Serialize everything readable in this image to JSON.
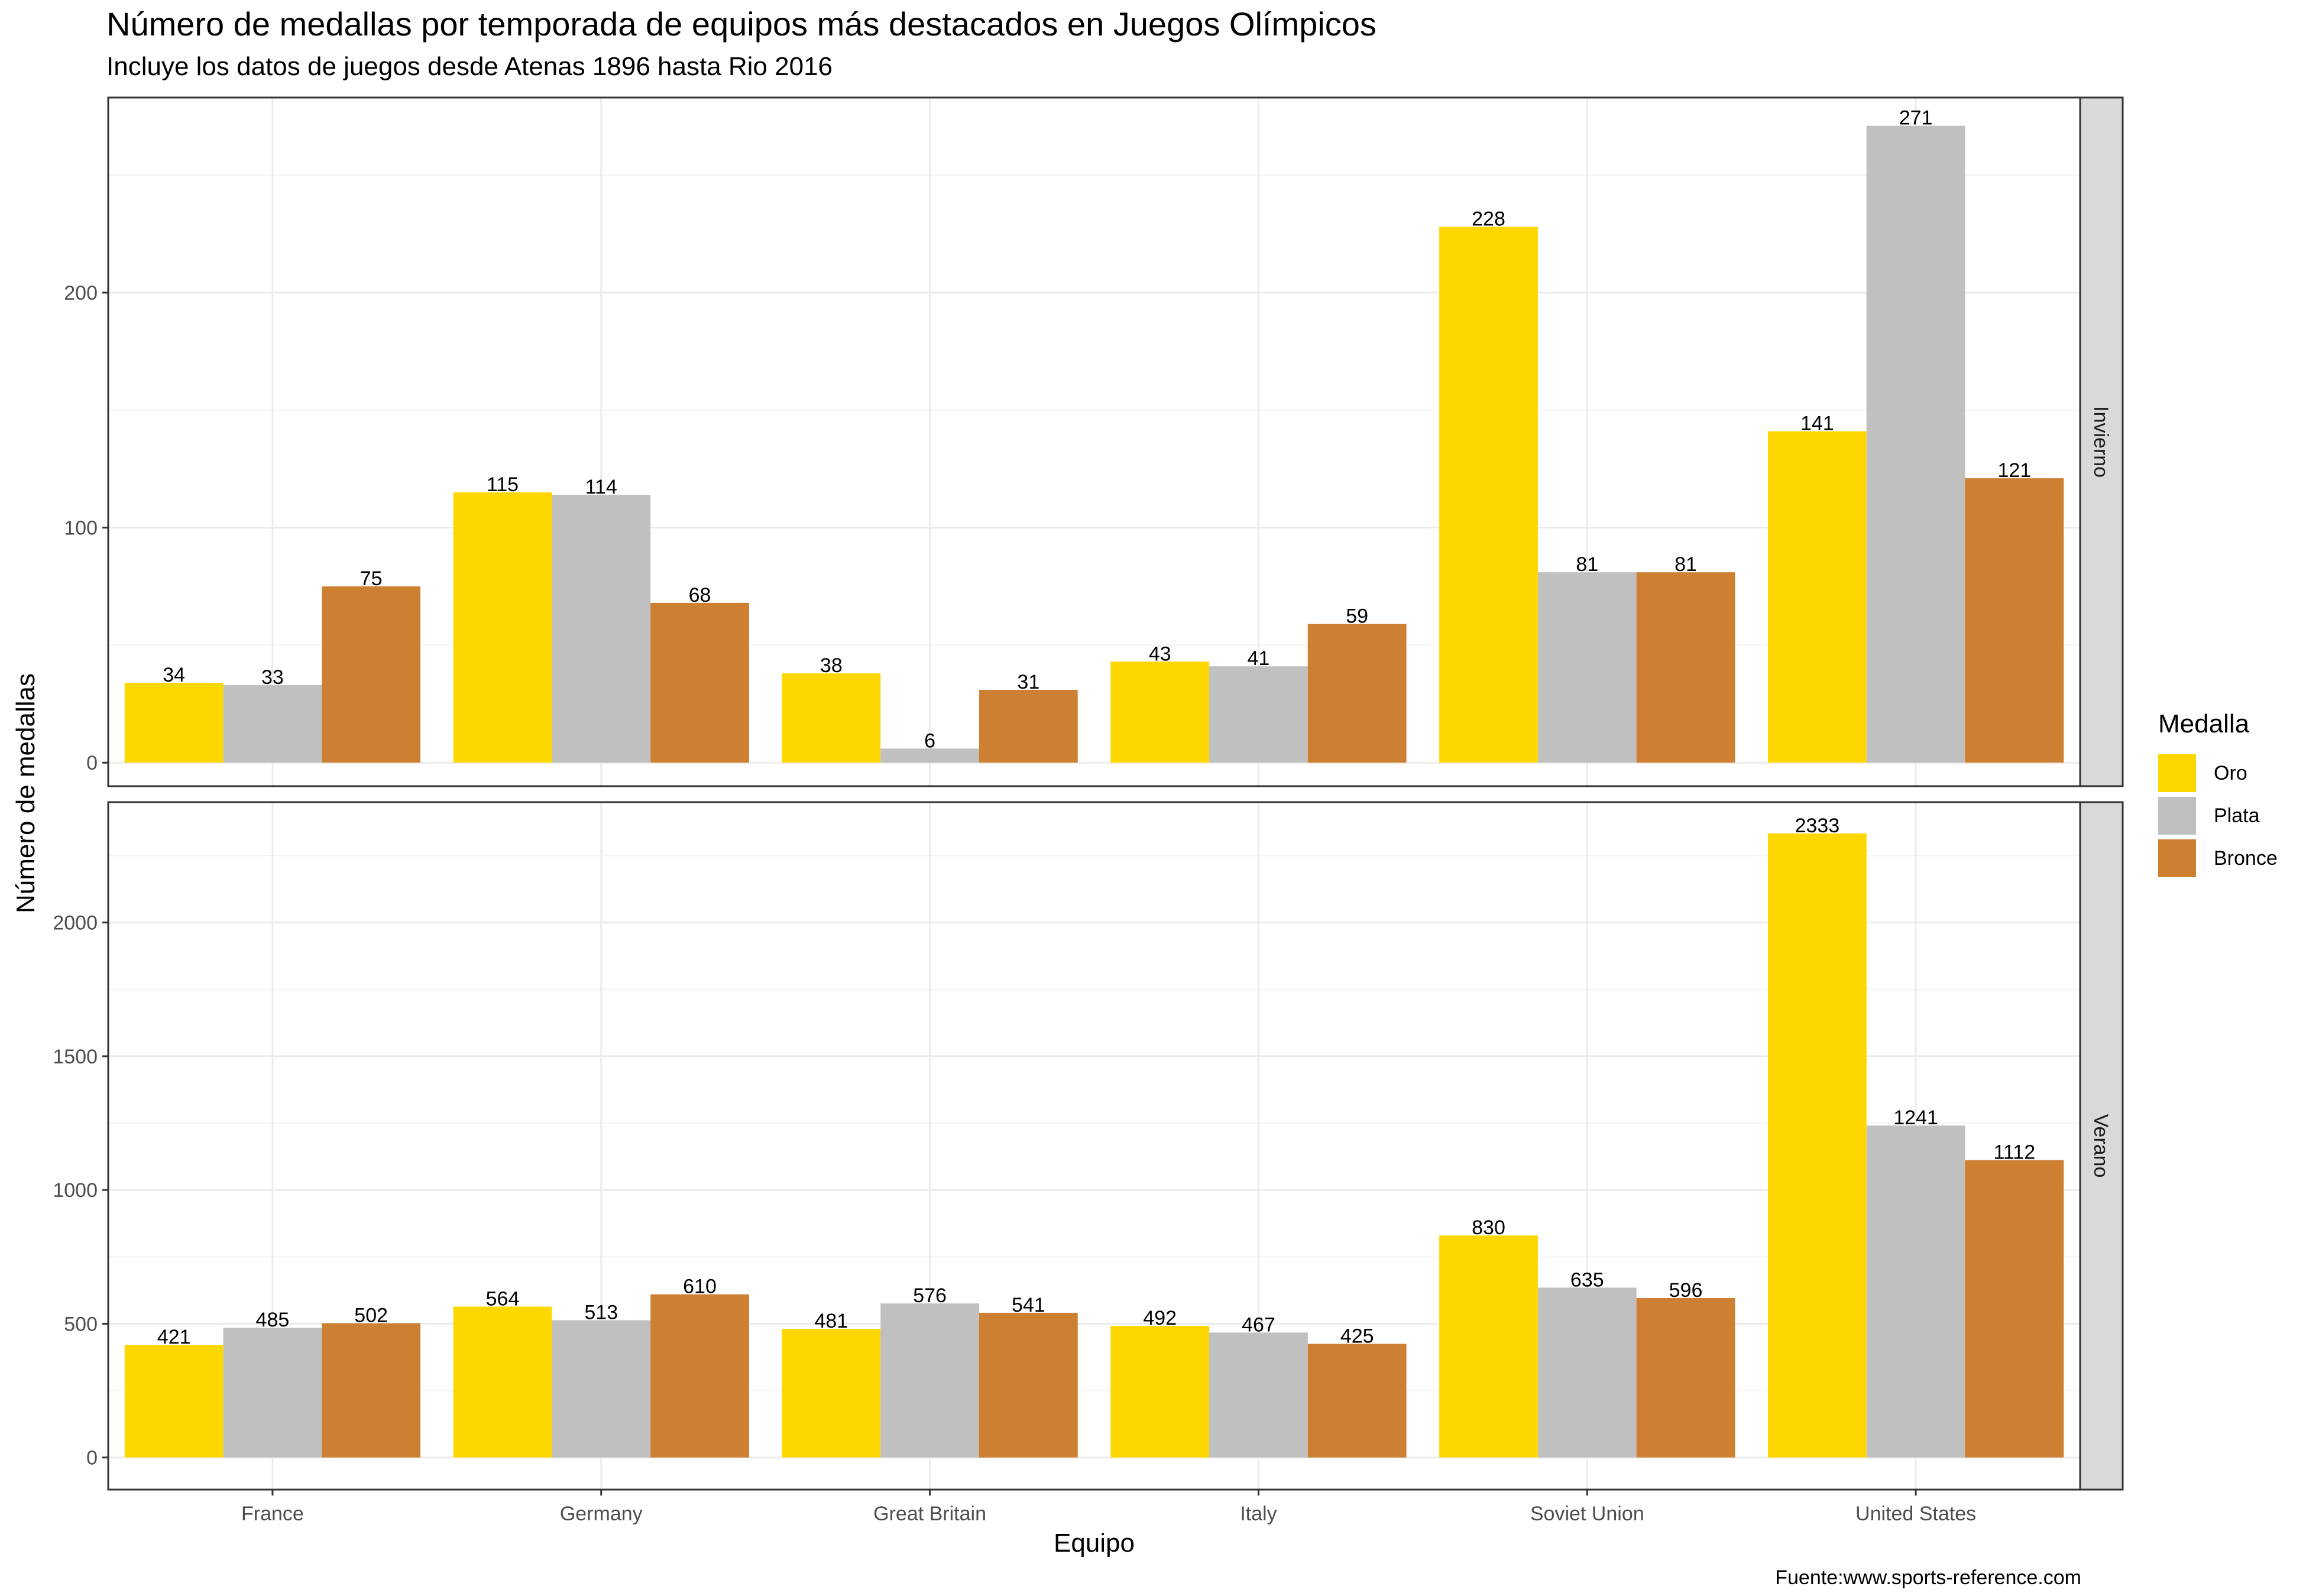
{
  "title": "Número de medallas por temporada de equipos más destacados en Juegos Olímpicos",
  "subtitle": "Incluye los datos de juegos desde Atenas 1896 hasta Rio 2016",
  "caption": "Fuente:www.sports-reference.com",
  "colors": {
    "panel_border": "#333333",
    "grid_major": "#ebebeb",
    "grid_minor": "#f4f4f4",
    "strip_fill": "#d9d9d9"
  },
  "legend": {
    "title": "Medalla",
    "items": [
      {
        "label": "Oro",
        "color": "#FFD700"
      },
      {
        "label": "Plata",
        "color": "#C0C0C0"
      },
      {
        "label": "Bronce",
        "color": "#CD7F32"
      }
    ]
  },
  "chart_data": {
    "type": "bar",
    "xlabel": "Equipo",
    "ylabel": "Número de medallas",
    "categories": [
      "France",
      "Germany",
      "Great Britain",
      "Italy",
      "Soviet Union",
      "United States"
    ],
    "legend_position": "right",
    "grid": true,
    "panels": [
      {
        "strip": "Invierno",
        "ylim": [
          -10,
          283
        ],
        "yticks": [
          0,
          100,
          200
        ],
        "series": [
          {
            "name": "Oro",
            "values": [
              34,
              115,
              38,
              43,
              228,
              141
            ]
          },
          {
            "name": "Plata",
            "values": [
              33,
              114,
              6,
              41,
              81,
              271
            ]
          },
          {
            "name": "Bronce",
            "values": [
              75,
              68,
              31,
              59,
              81,
              121
            ]
          }
        ]
      },
      {
        "strip": "Verano",
        "ylim": [
          -120,
          2450
        ],
        "yticks": [
          0,
          500,
          1000,
          1500,
          2000
        ],
        "series": [
          {
            "name": "Oro",
            "values": [
              421,
              564,
              481,
              492,
              830,
              2333
            ]
          },
          {
            "name": "Plata",
            "values": [
              485,
              513,
              576,
              467,
              635,
              1241
            ]
          },
          {
            "name": "Bronce",
            "values": [
              502,
              610,
              541,
              425,
              596,
              1112
            ]
          }
        ]
      }
    ]
  }
}
